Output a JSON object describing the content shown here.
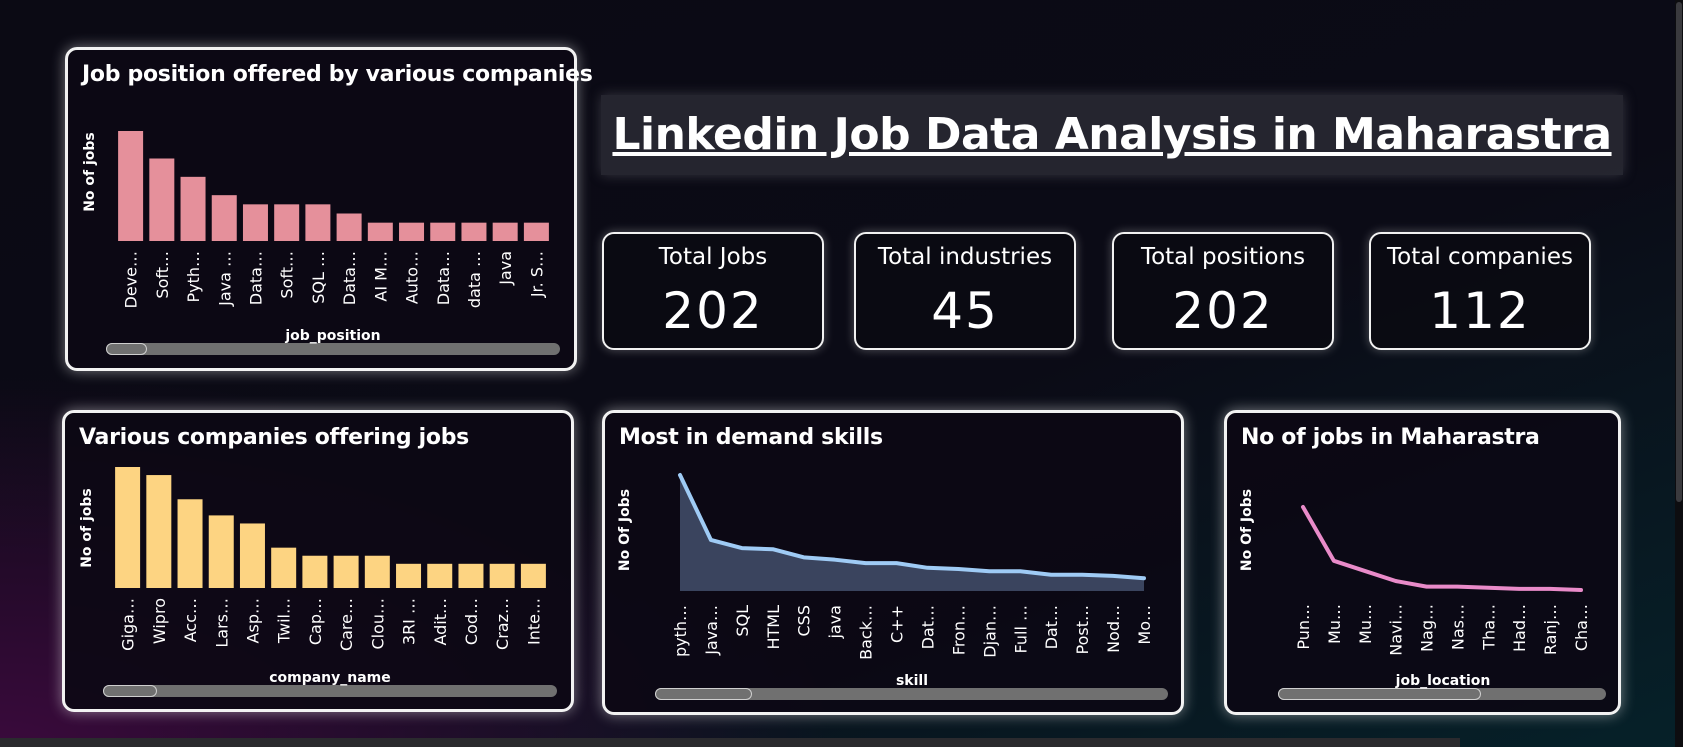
{
  "header": {
    "title": "Linkedin Job Data Analysis in Maharastra"
  },
  "kpis": [
    {
      "label": "Total Jobs",
      "value": "202"
    },
    {
      "label": "Total industries",
      "value": "45"
    },
    {
      "label": "Total positions",
      "value": "202"
    },
    {
      "label": "Total companies",
      "value": "112"
    }
  ],
  "colors": {
    "positions_bar": "#e5909b",
    "companies_bar": "#fdd482",
    "skills_line": "#9fcbf5",
    "skills_area": "#3f4b66",
    "location_line": "#e98bc9"
  },
  "chart_data": [
    {
      "type": "bar",
      "title": "Job position offered by various companies",
      "xlabel": "job_position",
      "ylabel": "No of jobs",
      "categories": [
        "Deve…",
        "Soft…",
        "Pyth…",
        "Java …",
        "Data…",
        "Soft…",
        "SQL …",
        "Data…",
        "AI M…",
        "Auto…",
        "Data…",
        "data …",
        "Java",
        "Jr. S…"
      ],
      "values": [
        12,
        9,
        7,
        5,
        4,
        4,
        4,
        3,
        2,
        2,
        2,
        2,
        2,
        2
      ],
      "ylim": [
        0,
        12
      ],
      "scrollbar": {
        "thumb_start": 0.0,
        "thumb_end": 0.09
      }
    },
    {
      "type": "bar",
      "title": "Various companies offering jobs",
      "xlabel": "company_name",
      "ylabel": "No of jobs",
      "categories": [
        "Giga…",
        "Wipro",
        "Acc…",
        "Lars…",
        "Asp…",
        "Twil…",
        "Cap…",
        "Care…",
        "Clou…",
        "3RI …",
        "Adit…",
        "Cod…",
        "Craz…",
        "Inte…"
      ],
      "values": [
        15,
        14,
        11,
        9,
        8,
        5,
        4,
        4,
        4,
        3,
        3,
        3,
        3,
        3
      ],
      "ylim": [
        0,
        15
      ],
      "scrollbar": {
        "thumb_start": 0.0,
        "thumb_end": 0.12
      }
    },
    {
      "type": "area",
      "title": "Most in demand skills",
      "xlabel": "skill",
      "ylabel": "No Of Jobs",
      "categories": [
        "pyth…",
        "Java…",
        "SQL",
        "HTML",
        "CSS",
        "java",
        "Back…",
        "C++",
        "Dat…",
        "Fron…",
        "Djan…",
        "Full …",
        "Dat…",
        "Post…",
        "Nod…",
        "Mo…"
      ],
      "values": [
        100,
        44,
        37,
        36,
        29,
        27,
        24,
        24,
        20,
        19,
        17,
        17,
        14,
        14,
        13,
        11
      ],
      "ylim": [
        0,
        100
      ],
      "scrollbar": {
        "thumb_start": 0.0,
        "thumb_end": 0.19
      }
    },
    {
      "type": "line",
      "title": "No of jobs in Maharastra",
      "xlabel": "job_location",
      "ylabel": "No Of Jobs",
      "categories": [
        "Pun…",
        "Mu…",
        "Mu…",
        "Navi…",
        "Nag…",
        "Nas…",
        "Tha…",
        "Had…",
        "Ranj…",
        "Cha…"
      ],
      "values": [
        74,
        26,
        17,
        8,
        3,
        3,
        2,
        1,
        1,
        0
      ],
      "ylim": [
        0,
        74
      ],
      "scrollbar": {
        "thumb_start": 0.0,
        "thumb_end": 0.62
      }
    }
  ]
}
